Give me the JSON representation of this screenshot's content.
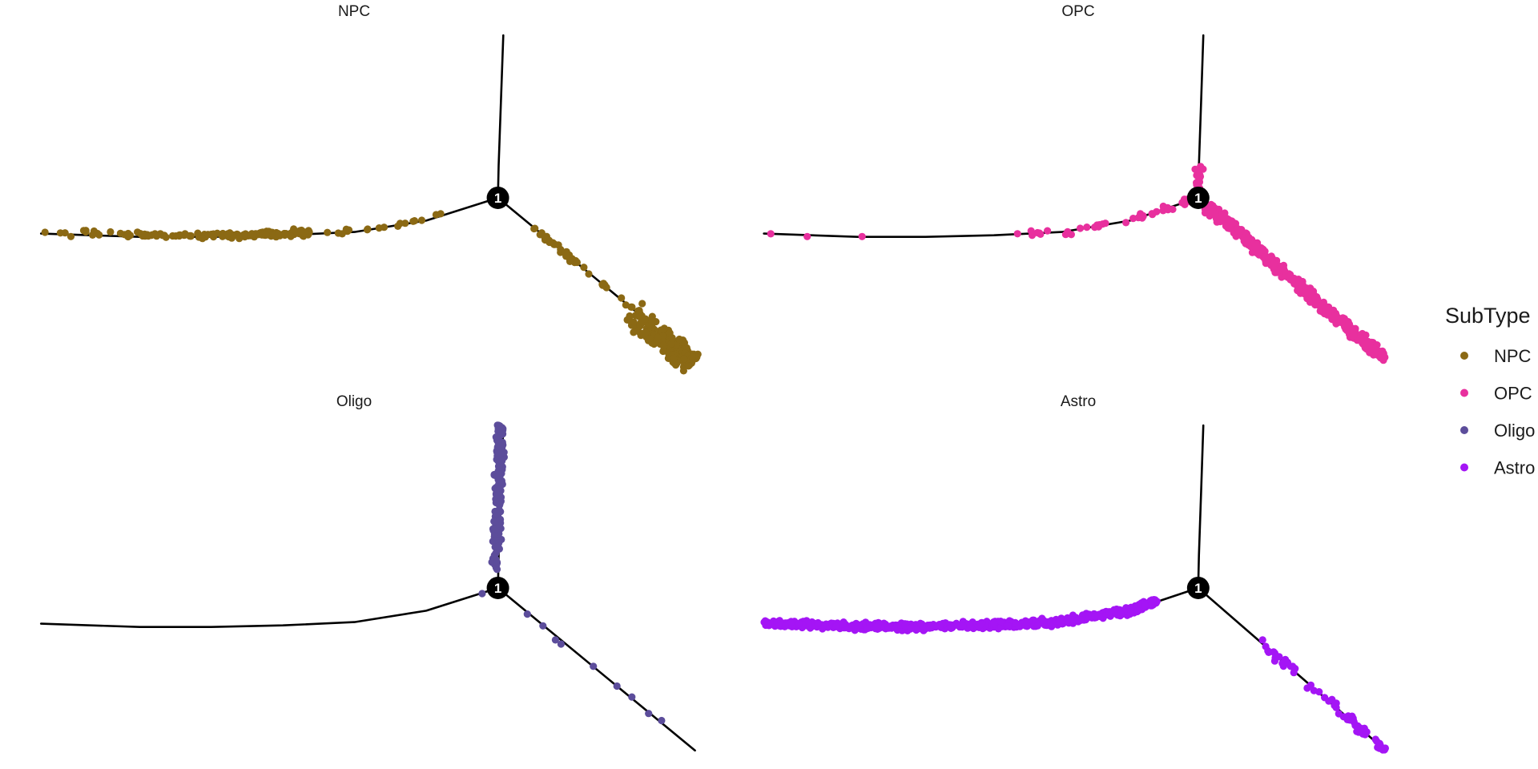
{
  "chart_data": {
    "type": "scatter",
    "facets": [
      "NPC",
      "OPC",
      "Oligo",
      "Astro"
    ],
    "trajectory": {
      "branch_point": [
        0,
        0
      ],
      "branch_point_label": "1",
      "branches": [
        {
          "id": "up",
          "points": [
            [
              0,
              0
            ],
            [
              0.4,
              20
            ],
            [
              1.7,
              60
            ],
            [
              3.0,
              100
            ]
          ]
        },
        {
          "id": "left",
          "points": [
            [
              0,
              0
            ],
            [
              -40,
              -14
            ],
            [
              -80,
              -21
            ],
            [
              -120,
              -23
            ],
            [
              -160,
              -24
            ],
            [
              -200,
              -24
            ],
            [
              -255,
              -22
            ]
          ]
        },
        {
          "id": "right",
          "points": [
            [
              0,
              0
            ],
            [
              110,
              -100
            ]
          ]
        }
      ]
    },
    "xlim": [
      -260,
      120
    ],
    "ylim": [
      -103,
      102
    ],
    "grid": false,
    "legend": {
      "title": "SubType",
      "position": "right"
    },
    "series": [
      {
        "name": "NPC",
        "color": "#8B6914",
        "clusters": [
          {
            "branch": "left",
            "t_range": [
              0.42,
              1.0
            ],
            "count": 150,
            "skew": 1.8,
            "spread": 1.6,
            "bias": -1.0
          },
          {
            "branch": "left",
            "t_range": [
              0.12,
              0.42
            ],
            "count": 18,
            "skew": 1.0,
            "spread": 1.6,
            "bias": -1.0
          },
          {
            "branch": "right",
            "t_range": [
              0.18,
              0.72
            ],
            "count": 45,
            "skew": 1.0,
            "spread": 1.5,
            "bias": 0
          },
          {
            "branch": "right",
            "t_range": [
              0.68,
              1.0
            ],
            "count": 230,
            "skew": 0.6,
            "spread": 6.0,
            "bias": -3.0
          }
        ]
      },
      {
        "name": "OPC",
        "color": "#E8309E",
        "clusters": [
          {
            "branch": "right",
            "t_range": [
              0.05,
              1.0
            ],
            "count": 480,
            "skew": 1.0,
            "spread": 2.6,
            "bias": 0
          },
          {
            "branch": "left",
            "t_range": [
              0.0,
              0.4
            ],
            "count": 45,
            "skew": 1.6,
            "spread": 1.8,
            "bias": 0
          },
          {
            "branch": "left",
            "t_range": [
              0.4,
              1.0
            ],
            "count": 4,
            "skew": 1.0,
            "spread": 1.0,
            "bias": 0
          },
          {
            "branch": "up",
            "t_range": [
              0.0,
              0.2
            ],
            "count": 18,
            "skew": 1.0,
            "spread": 2.5,
            "bias": 0.5
          }
        ]
      },
      {
        "name": "Oligo",
        "color": "#5C4D9B",
        "clusters": [
          {
            "branch": "up",
            "t_range": [
              0.1,
              1.0
            ],
            "count": 170,
            "skew": 0.7,
            "spread": 2.0,
            "bias": 1.5
          },
          {
            "branch": "right",
            "t_range": [
              0.05,
              0.85
            ],
            "count": 9,
            "skew": 1.0,
            "spread": 1.5,
            "bias": 0
          },
          {
            "branch": "left",
            "t_range": [
              0.0,
              0.1
            ],
            "count": 2,
            "skew": 1.0,
            "spread": 1.0,
            "bias": 0
          }
        ]
      },
      {
        "name": "Astro",
        "color": "#A415F5",
        "clusters": [
          {
            "branch": "left",
            "t_range": [
              0.1,
              1.0
            ],
            "count": 720,
            "skew": 1.15,
            "spread": 1.9,
            "bias": -0.3
          },
          {
            "branch": "right",
            "t_range": [
              0.3,
              1.0
            ],
            "count": 60,
            "skew": 0.8,
            "spread": 2.0,
            "bias": 0
          }
        ]
      }
    ]
  }
}
